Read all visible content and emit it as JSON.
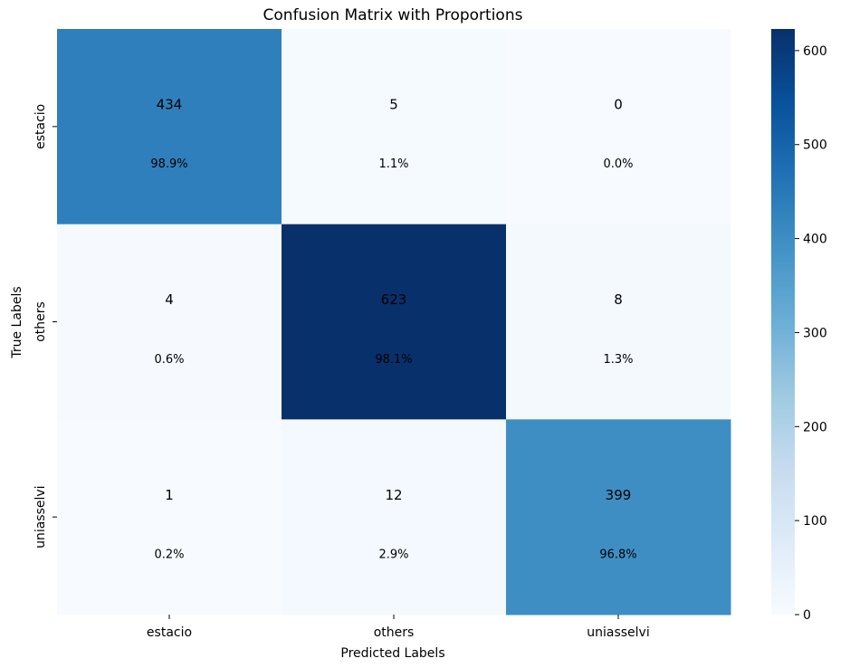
{
  "chart_data": {
    "type": "heatmap",
    "title": "Confusion Matrix with Proportions",
    "xlabel": "Predicted Labels",
    "ylabel": "True Labels",
    "x_categories": [
      "estacio",
      "others",
      "uniasselvi"
    ],
    "y_categories": [
      "estacio",
      "others",
      "uniasselvi"
    ],
    "values": [
      [
        434,
        5,
        0
      ],
      [
        4,
        623,
        8
      ],
      [
        1,
        12,
        399
      ]
    ],
    "proportions": [
      [
        "98.9%",
        "1.1%",
        "0.0%"
      ],
      [
        "0.6%",
        "98.1%",
        "1.3%"
      ],
      [
        "0.2%",
        "2.9%",
        "96.8%"
      ]
    ],
    "colorbar": {
      "colormap": "Blues",
      "range": [
        0,
        623
      ],
      "ticks": [
        0,
        100,
        200,
        300,
        400,
        500,
        600
      ]
    },
    "grid": false
  }
}
